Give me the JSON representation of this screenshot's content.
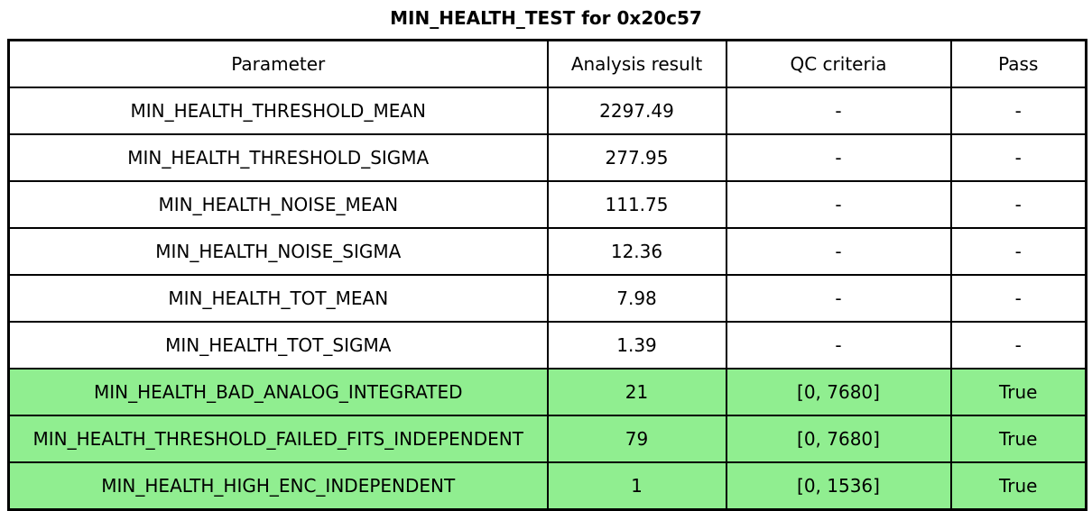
{
  "chart_data": {
    "type": "table",
    "title": "MIN_HEALTH_TEST for 0x20c57",
    "columns": [
      "Parameter",
      "Analysis result",
      "QC criteria",
      "Pass"
    ],
    "rows": [
      [
        "MIN_HEALTH_THRESHOLD_MEAN",
        2297.49,
        "-",
        "-"
      ],
      [
        "MIN_HEALTH_THRESHOLD_SIGMA",
        277.95,
        "-",
        "-"
      ],
      [
        "MIN_HEALTH_NOISE_MEAN",
        111.75,
        "-",
        "-"
      ],
      [
        "MIN_HEALTH_NOISE_SIGMA",
        12.36,
        "-",
        "-"
      ],
      [
        "MIN_HEALTH_TOT_MEAN",
        7.98,
        "-",
        "-"
      ],
      [
        "MIN_HEALTH_TOT_SIGMA",
        1.39,
        "-",
        "-"
      ],
      [
        "MIN_HEALTH_BAD_ANALOG_INTEGRATED",
        21,
        "[0, 7680]",
        "True"
      ],
      [
        "MIN_HEALTH_THRESHOLD_FAILED_FITS_INDEPENDENT",
        79,
        "[0, 7680]",
        "True"
      ],
      [
        "MIN_HEALTH_HIGH_ENC_INDEPENDENT",
        1,
        "[0, 1536]",
        "True"
      ]
    ],
    "highlighted_rows": [
      6,
      7,
      8
    ],
    "highlight_color": "#90EE90",
    "legend_position": "none",
    "grid": true
  },
  "colors": {
    "highlight_green": "#90EE90",
    "border": "#000000",
    "background": "#ffffff",
    "text": "#000000"
  }
}
